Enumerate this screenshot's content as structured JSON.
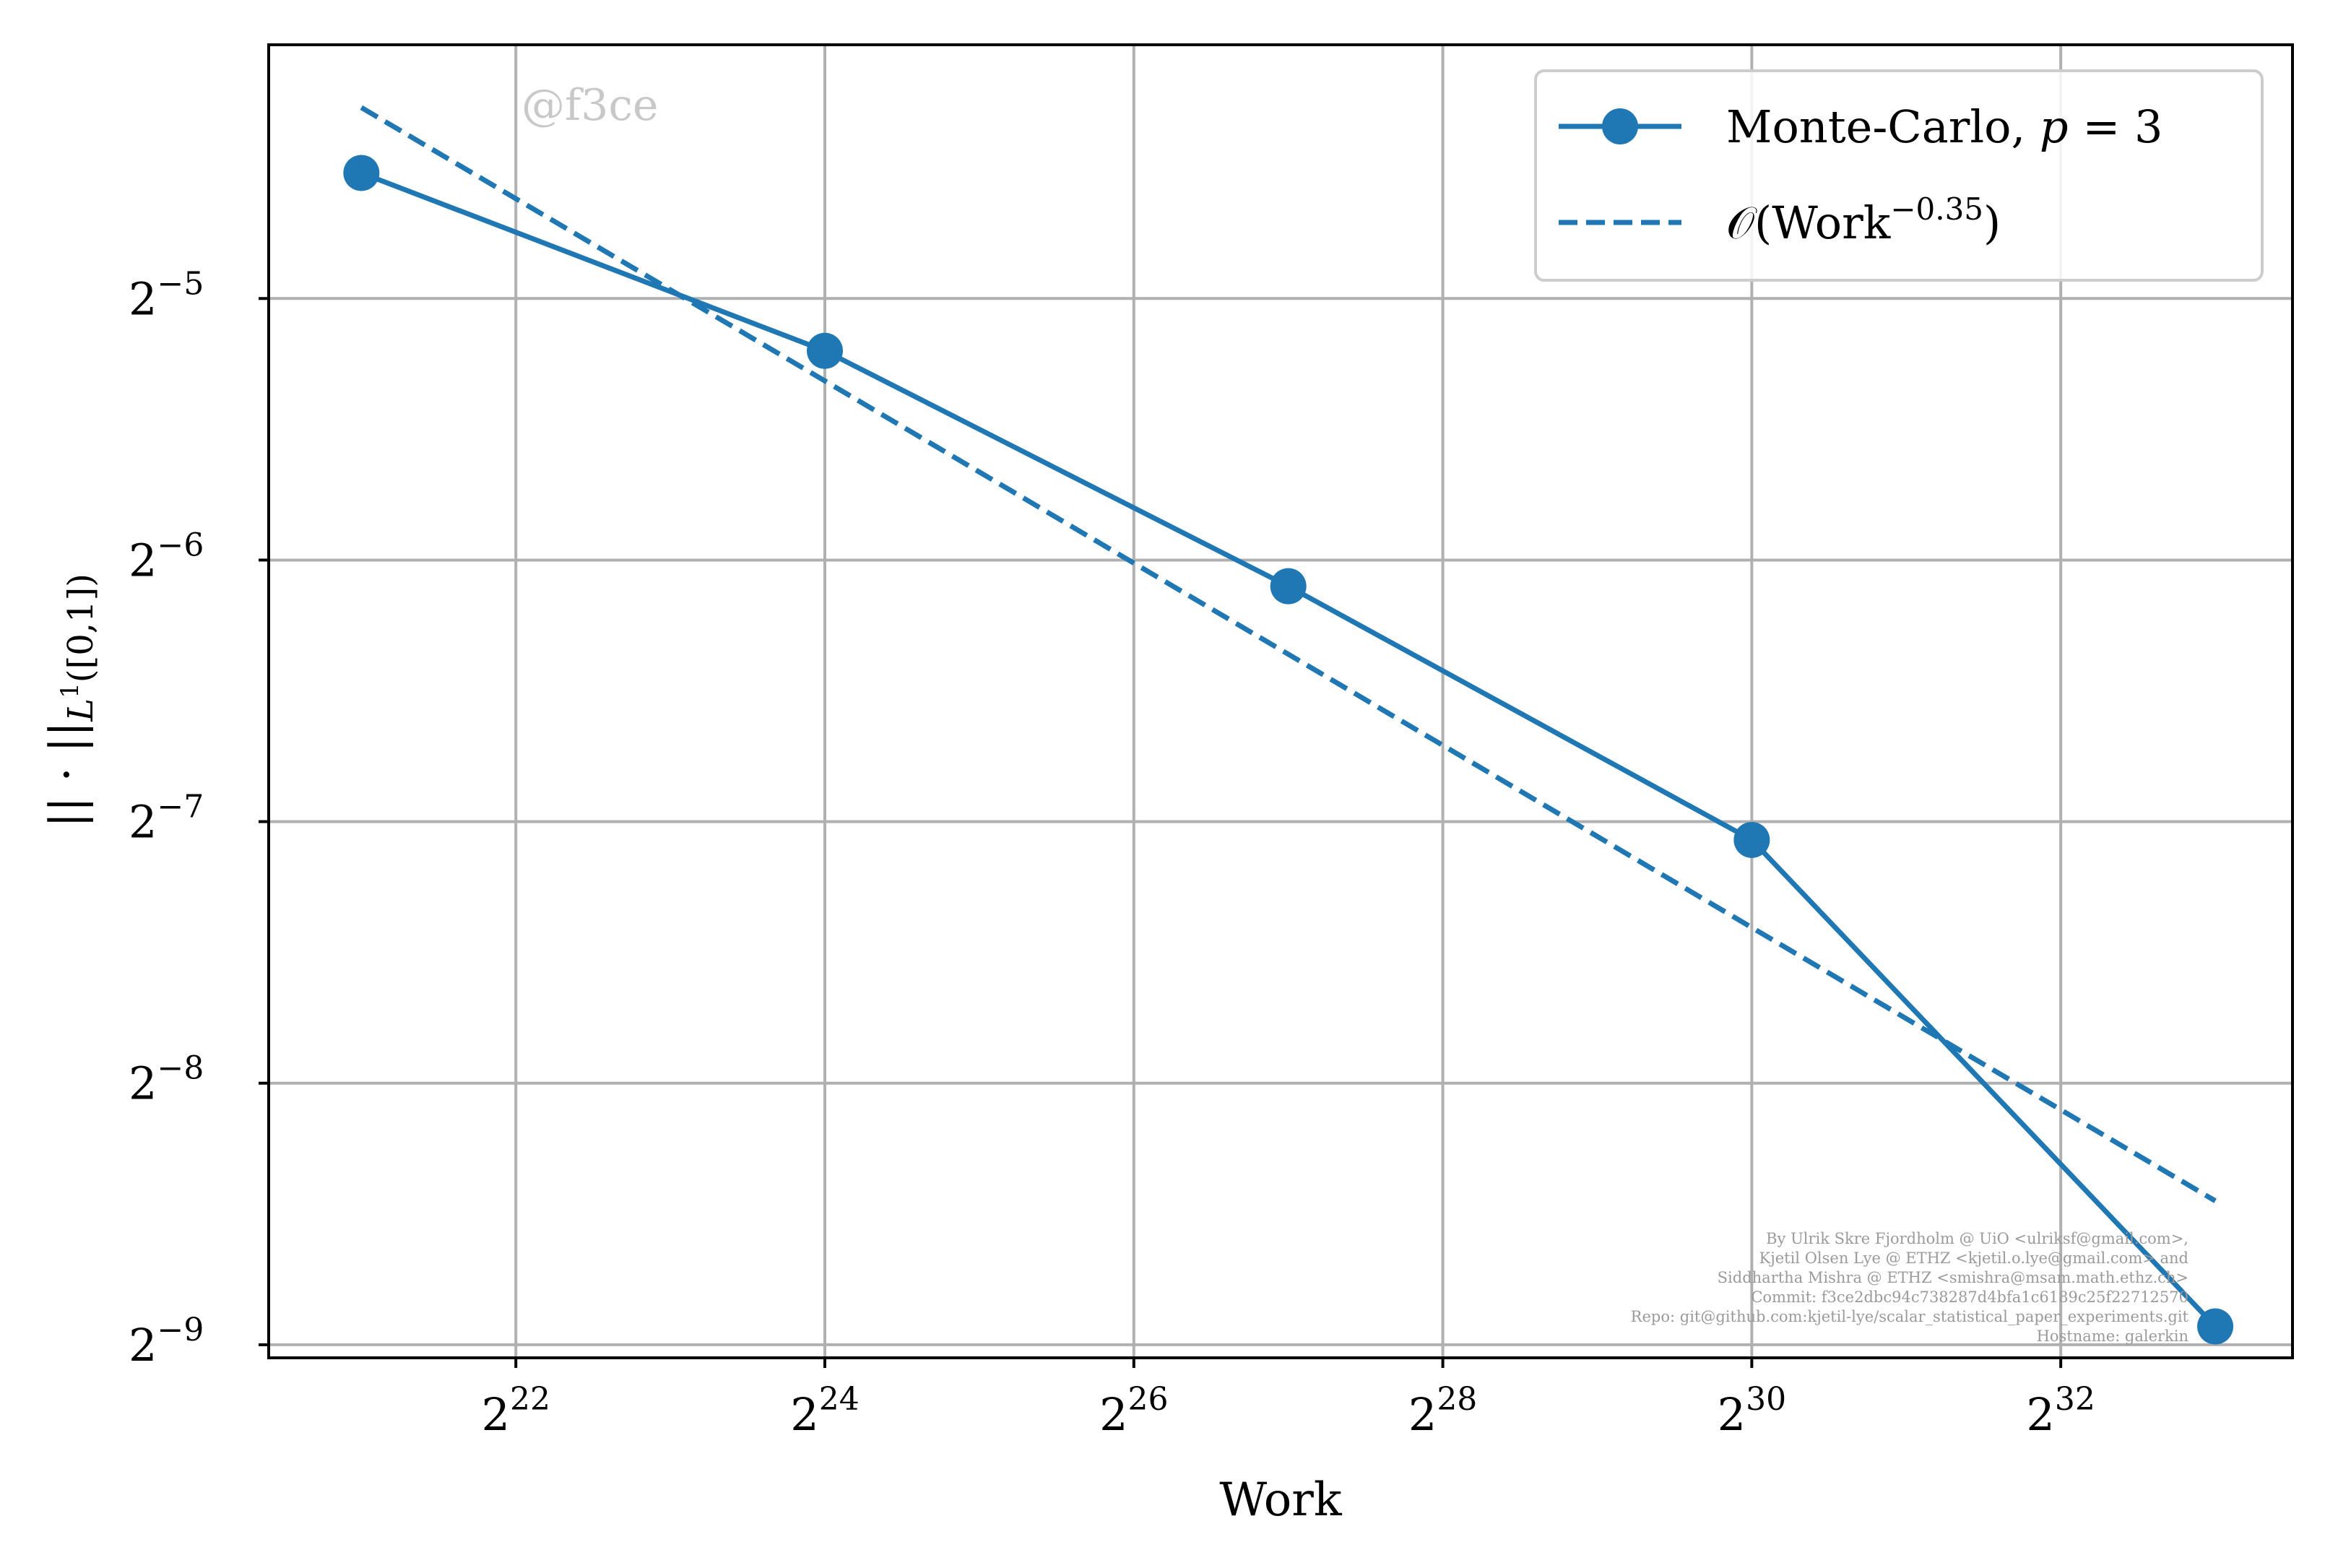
{
  "chart_data": {
    "type": "line",
    "xlabel": "Work",
    "ylabel": "|| · ||",
    "ylabel_sub": "L",
    "ylabel_sub_sup": "1",
    "ylabel_sub_tail": "([0,1])",
    "x_scale": "log2",
    "y_scale": "log2",
    "xlim_log2": [
      20.4,
      33.5
    ],
    "ylim_log2": [
      -9.05,
      -4.03
    ],
    "x_ticks": [
      {
        "base": "2",
        "exp": "22",
        "log2": 22
      },
      {
        "base": "2",
        "exp": "24",
        "log2": 24
      },
      {
        "base": "2",
        "exp": "26",
        "log2": 26
      },
      {
        "base": "2",
        "exp": "28",
        "log2": 28
      },
      {
        "base": "2",
        "exp": "30",
        "log2": 30
      },
      {
        "base": "2",
        "exp": "32",
        "log2": 32
      }
    ],
    "y_ticks": [
      {
        "base": "2",
        "exp": "−5",
        "log2": -5
      },
      {
        "base": "2",
        "exp": "−6",
        "log2": -6
      },
      {
        "base": "2",
        "exp": "−7",
        "log2": -7
      },
      {
        "base": "2",
        "exp": "−8",
        "log2": -8
      },
      {
        "base": "2",
        "exp": "−9",
        "log2": -9
      }
    ],
    "grid": true,
    "legend_position": "top-right",
    "series": [
      {
        "name": "Monte-Carlo, p = 3",
        "legend_text": "Monte-Carlo, ",
        "legend_var": "p",
        "legend_eq": " = 3",
        "style": "solid-marker",
        "color": "#1f77b4",
        "x_log2": [
          21,
          24,
          27,
          30,
          33
        ],
        "y_log2": [
          -4.52,
          -5.2,
          -6.1,
          -7.07,
          -8.93
        ]
      },
      {
        "name": "O(Work^-0.35)",
        "legend_text": "𝒪(Work",
        "legend_sup": "−0.35",
        "legend_tail": ")",
        "style": "dashed",
        "color": "#1f77b4",
        "x_log2": [
          21,
          33
        ],
        "y_log2": [
          -4.27,
          -8.45
        ]
      }
    ],
    "watermark": "@f3ce",
    "credits": [
      "By Ulrik Skre Fjordholm @ UiO <ulriksf@gmail.com>,",
      "Kjetil Olsen Lye @ ETHZ <kjetil.o.lye@gmail.com> and",
      "Siddhartha Mishra @ ETHZ <smishra@msam.math.ethz.ch>",
      "Commit: f3ce2dbc94c738287d4bfa1c6189c25f22712570",
      "Repo: git@github.com:kjetil-lye/scalar_statistical_paper_experiments.git",
      "Hostname: galerkin"
    ]
  }
}
